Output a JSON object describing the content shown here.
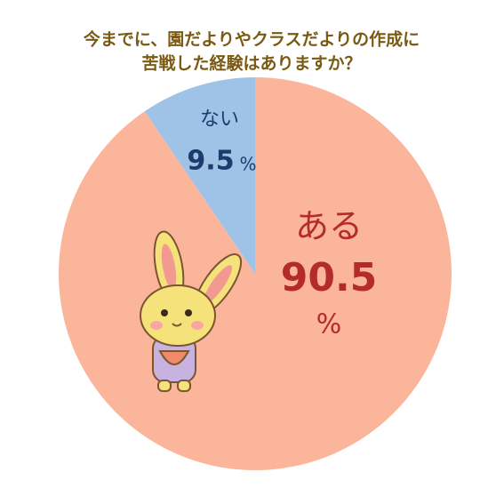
{
  "chart_data": {
    "type": "pie",
    "title": [
      "今までに、園だよりやクラスだよりの作成に",
      "苦戦した経験はありますか？"
    ],
    "categories": [
      "ある",
      "ない"
    ],
    "values": [
      90.5,
      9.5
    ],
    "unit": "%",
    "colors": [
      "#fbb59b",
      "#9fc3e7"
    ],
    "label_colors": [
      "#b32b2b",
      "#1d3b6b"
    ]
  }
}
